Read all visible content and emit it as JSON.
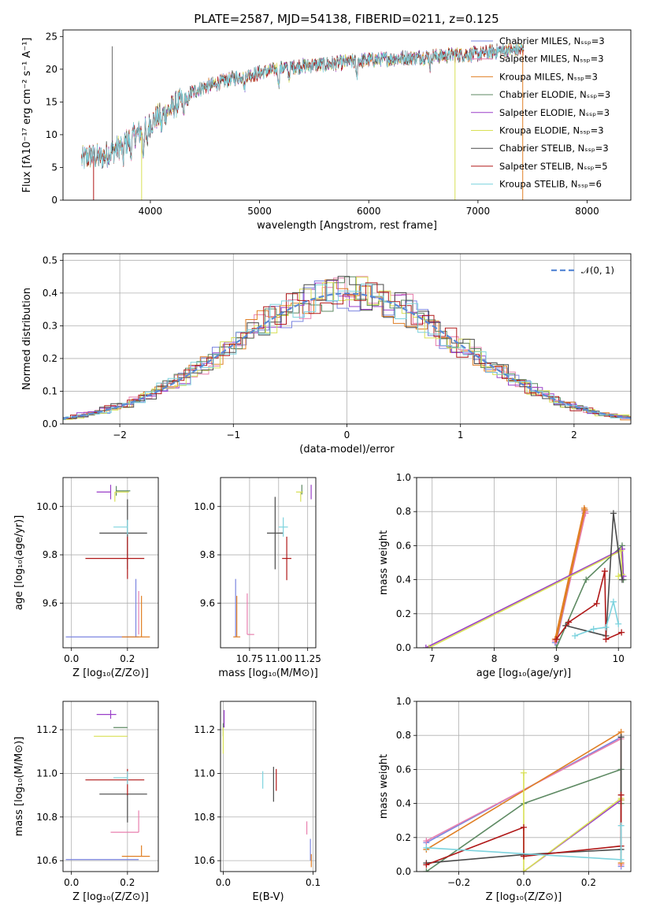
{
  "title": "PLATE=2587, MJD=54138, FIBERID=0211, z=0.125",
  "colors": {
    "Chabrier MILES": "#7b85e0",
    "Salpeter MILES": "#e87fae",
    "Kroupa MILES": "#e07f24",
    "Chabrier ELODIE": "#5e8a63",
    "Salpeter ELODIE": "#9a3fc8",
    "Kroupa ELODIE": "#d8e055",
    "Chabrier STELIB": "#4a4a4a",
    "Salpeter STELIB": "#b01818",
    "Kroupa STELIB": "#7dd3de",
    "gaussian": "#5a8ad6"
  },
  "chart_data": [
    {
      "id": "spectrum",
      "type": "line",
      "xlabel": "wavelength [Angstrom, rest frame]",
      "ylabel": "Flux [fλ10⁻¹⁷ erg cm⁻² s⁻¹ A⁻¹]",
      "xlim": [
        3200,
        8400
      ],
      "ylim": [
        0,
        26
      ],
      "xticks": [
        4000,
        5000,
        6000,
        7000,
        8000
      ],
      "yticks": [
        0,
        5,
        10,
        15,
        20,
        25
      ],
      "legend_position": "top-right",
      "legend": [
        "Chabrier MILES, Nₛₛₚ=3",
        "Salpeter MILES, Nₛₛₚ=3",
        "Kroupa MILES, Nₛₛₚ=3",
        "Chabrier ELODIE, Nₛₛₚ=3",
        "Salpeter ELODIE, Nₛₛₚ=3",
        "Kroupa ELODIE, Nₛₛₚ=3",
        "Chabrier STELIB, Nₛₛₚ=3",
        "Salpeter STELIB, Nₛₛₚ=5",
        "Kroupa STELIB, Nₛₛₚ=6"
      ],
      "continuum": {
        "x": [
          3370,
          3450,
          3550,
          3650,
          3750,
          3850,
          3950,
          4050,
          4150,
          4250,
          4350,
          4450,
          4550,
          4700,
          4850,
          5000,
          5200,
          5400,
          5600,
          5800,
          6000,
          6200,
          6400,
          6600,
          6800,
          7000,
          7200,
          7400
        ],
        "y": [
          6.2,
          6.8,
          6.5,
          7.5,
          8.5,
          9.8,
          10.8,
          12.5,
          13.5,
          14.8,
          16.2,
          17.0,
          17.5,
          18.3,
          19.0,
          19.4,
          20.2,
          20.5,
          20.7,
          21.1,
          21.4,
          21.6,
          21.8,
          22.0,
          22.2,
          22.3,
          22.8,
          23.0
        ]
      },
      "deep_drops": [
        {
          "series": "Salpeter STELIB",
          "x": 3480
        },
        {
          "series": "Kroupa ELODIE",
          "x": 3920
        },
        {
          "series": "Kroupa ELODIE",
          "x": 6790
        },
        {
          "series": "Kroupa MILES",
          "x": 7410
        }
      ]
    },
    {
      "id": "residuals",
      "type": "line",
      "xlabel": "(data-model)/error",
      "ylabel": "Normed distribution",
      "xlim": [
        -2.5,
        2.5
      ],
      "ylim": [
        0,
        0.52
      ],
      "xticks": [
        -2,
        -1,
        0,
        1,
        2
      ],
      "yticks": [
        0.0,
        0.1,
        0.2,
        0.3,
        0.4,
        0.5
      ],
      "grid": true,
      "legend_position": "top-right",
      "gaussian_label": "𝒩(0, 1)",
      "bin_width": 0.1
    },
    {
      "id": "age-vs-Z",
      "type": "scatter",
      "xlabel": "Z [log₁₀(Z/Z⊙)]",
      "ylabel": "age  [log₁₀(age/yr)]",
      "xlim": [
        -0.03,
        0.31
      ],
      "ylim": [
        9.415,
        10.12
      ],
      "xticks": [
        0.0,
        0.2
      ],
      "yticks": [
        9.6,
        9.8,
        10.0
      ],
      "grid": true,
      "points": [
        {
          "series": "Chabrier MILES",
          "x": 0.23,
          "y": 9.46,
          "xerr": [
            0.25,
            0.01
          ],
          "yerr": [
            0.0,
            0.24
          ]
        },
        {
          "series": "Salpeter MILES",
          "x": 0.24,
          "y": 9.47,
          "xerr": [
            0.0,
            0.0
          ],
          "yerr": [
            0.0,
            0.18
          ]
        },
        {
          "series": "Kroupa MILES",
          "x": 0.25,
          "y": 9.46,
          "xerr": [
            0.07,
            0.03
          ],
          "yerr": [
            0.0,
            0.17
          ]
        },
        {
          "series": "Chabrier ELODIE",
          "x": 0.16,
          "y": 10.065,
          "xerr": [
            0.0,
            0.05
          ],
          "yerr": [
            0.02,
            0.02
          ]
        },
        {
          "series": "Salpeter ELODIE",
          "x": 0.14,
          "y": 10.06,
          "xerr": [
            0.05,
            0.0
          ],
          "yerr": [
            0.03,
            0.03
          ]
        },
        {
          "series": "Kroupa ELODIE",
          "x": 0.155,
          "y": 10.06,
          "xerr": [
            0.0,
            0.05
          ],
          "yerr": [
            0.04,
            0.0
          ]
        },
        {
          "series": "Chabrier STELIB",
          "x": 0.2,
          "y": 9.89,
          "xerr": [
            0.1,
            0.07
          ],
          "yerr": [
            0.15,
            0.14
          ]
        },
        {
          "series": "Salpeter STELIB",
          "x": 0.2,
          "y": 9.785,
          "xerr": [
            0.15,
            0.06
          ],
          "yerr": [
            0.085,
            0.09
          ]
        },
        {
          "series": "Kroupa STELIB",
          "x": 0.2,
          "y": 9.915,
          "xerr": [
            0.05,
            0.0
          ],
          "yerr": [
            0.03,
            0.03
          ]
        }
      ]
    },
    {
      "id": "age-vs-mass",
      "type": "scatter",
      "xlabel": "mass [log₁₀(M/M⊙)]",
      "ylabel": "",
      "xlim": [
        10.5,
        11.32
      ],
      "ylim": [
        9.415,
        10.12
      ],
      "xticks": [
        10.75,
        11.0,
        11.25
      ],
      "xtick_labels": [
        "10.75",
        "11.00",
        "11.25"
      ],
      "yticks": [
        9.6,
        9.8,
        10.0
      ],
      "grid": true,
      "points": [
        {
          "series": "Chabrier MILES",
          "x": 10.63,
          "y": 9.46,
          "xerr": [
            0.0,
            0.0
          ],
          "yerr": [
            0.0,
            0.24
          ]
        },
        {
          "series": "Salpeter MILES",
          "x": 10.73,
          "y": 9.47,
          "xerr": [
            0.0,
            0.06
          ],
          "yerr": [
            0.0,
            0.17
          ]
        },
        {
          "series": "Kroupa MILES",
          "x": 10.64,
          "y": 9.46,
          "xerr": [
            0.03,
            0.03
          ],
          "yerr": [
            0.0,
            0.17
          ]
        },
        {
          "series": "Chabrier ELODIE",
          "x": 11.2,
          "y": 10.07,
          "xerr": [
            0.0,
            0.0
          ],
          "yerr": [
            0.02,
            0.02
          ]
        },
        {
          "series": "Salpeter ELODIE",
          "x": 11.28,
          "y": 10.06,
          "xerr": [
            0.0,
            0.0
          ],
          "yerr": [
            0.03,
            0.03
          ]
        },
        {
          "series": "Kroupa ELODIE",
          "x": 11.19,
          "y": 10.06,
          "xerr": [
            0.04,
            0.02
          ],
          "yerr": [
            0.04,
            0.0
          ]
        },
        {
          "series": "Chabrier STELIB",
          "x": 10.97,
          "y": 9.89,
          "xerr": [
            0.07,
            0.07
          ],
          "yerr": [
            0.15,
            0.15
          ]
        },
        {
          "series": "Salpeter STELIB",
          "x": 11.07,
          "y": 9.785,
          "xerr": [
            0.04,
            0.04
          ],
          "yerr": [
            0.09,
            0.09
          ]
        },
        {
          "series": "Kroupa STELIB",
          "x": 11.04,
          "y": 9.915,
          "xerr": [
            0.04,
            0.04
          ],
          "yerr": [
            0.04,
            0.04
          ]
        }
      ]
    },
    {
      "id": "mass-weight-vs-age",
      "type": "line",
      "xlabel": "age  [log₁₀(age/yr)]",
      "ylabel": "mass weight",
      "xlim": [
        6.75,
        10.2
      ],
      "ylim": [
        0,
        1.0
      ],
      "xticks": [
        7,
        8,
        9,
        10
      ],
      "yticks": [
        0.0,
        0.2,
        0.4,
        0.6,
        0.8,
        1.0
      ],
      "grid": true,
      "series": [
        {
          "name": "Chabrier MILES",
          "x": [
            9.0,
            9.46,
            9.45,
            8.98
          ],
          "y": [
            0.03,
            0.79,
            0.81,
            0.03
          ]
        },
        {
          "name": "Salpeter MILES",
          "x": [
            9.0,
            9.47,
            9.46,
            8.98
          ],
          "y": [
            0.04,
            0.79,
            0.8,
            0.04
          ]
        },
        {
          "name": "Kroupa MILES",
          "x": [
            9.0,
            9.46,
            9.45,
            8.98
          ],
          "y": [
            0.05,
            0.81,
            0.82,
            0.05
          ]
        },
        {
          "name": "Chabrier ELODIE",
          "x": [
            9.0,
            9.48,
            10.06,
            10.08
          ],
          "y": [
            0.0,
            0.4,
            0.6,
            0.4
          ]
        },
        {
          "name": "Salpeter ELODIE",
          "x": [
            6.9,
            10.06,
            10.08
          ],
          "y": [
            0.0,
            0.58,
            0.42
          ]
        },
        {
          "name": "Kroupa ELODIE",
          "x": [
            6.95,
            10.04,
            10.06,
            10.0
          ],
          "y": [
            0.0,
            0.57,
            0.43,
            0.42
          ]
        },
        {
          "name": "Chabrier STELIB",
          "x": [
            9.15,
            9.8,
            9.92,
            10.06
          ],
          "y": [
            0.13,
            0.07,
            0.79,
            0.4
          ]
        },
        {
          "name": "Salpeter STELIB",
          "x": [
            9.0,
            9.2,
            9.65,
            9.78,
            9.8,
            10.05
          ],
          "y": [
            0.05,
            0.15,
            0.26,
            0.45,
            0.05,
            0.09
          ]
        },
        {
          "name": "Kroupa STELIB",
          "x": [
            9.3,
            9.6,
            9.8,
            9.92,
            10.0
          ],
          "y": [
            0.07,
            0.11,
            0.12,
            0.27,
            0.14
          ]
        }
      ]
    },
    {
      "id": "mass-vs-Z",
      "type": "scatter",
      "xlabel": "Z [log₁₀(Z/Z⊙)]",
      "ylabel": "mass [log₁₀(M/M⊙)]",
      "xlim": [
        -0.03,
        0.31
      ],
      "ylim": [
        10.55,
        11.33
      ],
      "xticks": [
        0.0,
        0.2
      ],
      "yticks": [
        10.6,
        10.8,
        11.0,
        11.2
      ],
      "grid": true,
      "points": [
        {
          "series": "Chabrier MILES",
          "x": 0.23,
          "y": 10.605,
          "xerr": [
            0.25,
            0.01
          ],
          "yerr": [
            0.0,
            0.0
          ]
        },
        {
          "series": "Salpeter MILES",
          "x": 0.24,
          "y": 10.73,
          "xerr": [
            0.1,
            0.0
          ],
          "yerr": [
            0.0,
            0.1
          ]
        },
        {
          "series": "Kroupa MILES",
          "x": 0.25,
          "y": 10.62,
          "xerr": [
            0.07,
            0.03
          ],
          "yerr": [
            0.0,
            0.05
          ]
        },
        {
          "series": "Chabrier ELODIE",
          "x": 0.2,
          "y": 11.21,
          "xerr": [
            0.05,
            0.0
          ],
          "yerr": [
            0.0,
            0.0
          ]
        },
        {
          "series": "Salpeter ELODIE",
          "x": 0.14,
          "y": 11.27,
          "xerr": [
            0.05,
            0.02
          ],
          "yerr": [
            0.02,
            0.02
          ]
        },
        {
          "series": "Kroupa ELODIE",
          "x": 0.16,
          "y": 11.17,
          "xerr": [
            0.08,
            0.04
          ],
          "yerr": [
            0.0,
            0.0
          ]
        },
        {
          "series": "Chabrier STELIB",
          "x": 0.2,
          "y": 10.905,
          "xerr": [
            0.1,
            0.07
          ],
          "yerr": [
            0.13,
            0.0
          ]
        },
        {
          "series": "Salpeter STELIB",
          "x": 0.2,
          "y": 10.97,
          "xerr": [
            0.15,
            0.06
          ],
          "yerr": [
            0.07,
            0.05
          ]
        },
        {
          "series": "Kroupa STELIB",
          "x": 0.2,
          "y": 10.98,
          "xerr": [
            0.05,
            0.0
          ],
          "yerr": [
            0.03,
            0.03
          ]
        }
      ]
    },
    {
      "id": "mass-vs-EBV",
      "type": "scatter",
      "xlabel": "E(B-V)",
      "ylabel": "",
      "xlim": [
        -0.003,
        0.103
      ],
      "ylim": [
        10.55,
        11.33
      ],
      "xticks": [
        0.0,
        0.1
      ],
      "yticks": [
        10.6,
        10.8,
        11.0,
        11.2
      ],
      "grid": true,
      "points": [
        {
          "series": "Chabrier MILES",
          "x": 0.097,
          "y": 10.65,
          "xerr": [
            0.0,
            0.0
          ],
          "yerr": [
            0.05,
            0.05
          ]
        },
        {
          "series": "Salpeter MILES",
          "x": 0.093,
          "y": 10.78,
          "xerr": [
            0.0,
            0.0
          ],
          "yerr": [
            0.06,
            0.0
          ]
        },
        {
          "series": "Kroupa MILES",
          "x": 0.098,
          "y": 10.6,
          "xerr": [
            0.0,
            0.0
          ],
          "yerr": [
            0.03,
            0.03
          ]
        },
        {
          "series": "Chabrier ELODIE",
          "x": 0.0,
          "y": 11.2,
          "xerr": [
            0.0,
            0.0
          ],
          "yerr": [
            0.03,
            0.03
          ]
        },
        {
          "series": "Salpeter ELODIE",
          "x": 0.001,
          "y": 11.25,
          "xerr": [
            0.0,
            0.0
          ],
          "yerr": [
            0.04,
            0.04
          ]
        },
        {
          "series": "Kroupa ELODIE",
          "x": 0.0,
          "y": 11.15,
          "xerr": [
            0.0,
            0.0
          ],
          "yerr": [
            0.06,
            0.06
          ]
        },
        {
          "series": "Chabrier STELIB",
          "x": 0.056,
          "y": 10.95,
          "xerr": [
            0.0,
            0.0
          ],
          "yerr": [
            0.08,
            0.08
          ]
        },
        {
          "series": "Salpeter STELIB",
          "x": 0.059,
          "y": 10.97,
          "xerr": [
            0.0,
            0.0
          ],
          "yerr": [
            0.05,
            0.05
          ]
        },
        {
          "series": "Kroupa STELIB",
          "x": 0.044,
          "y": 10.97,
          "xerr": [
            0.0,
            0.0
          ],
          "yerr": [
            0.04,
            0.04
          ]
        }
      ]
    },
    {
      "id": "mass-weight-vs-Z",
      "type": "line",
      "xlabel": "Z [log₁₀(Z/Z⊙)]",
      "ylabel": "mass weight",
      "xlim": [
        -0.33,
        0.33
      ],
      "ylim": [
        0,
        1.0
      ],
      "xticks": [
        -0.2,
        0.0,
        0.2
      ],
      "yticks": [
        0.0,
        0.2,
        0.4,
        0.6,
        0.8,
        1.0
      ],
      "grid": true,
      "series": [
        {
          "name": "Chabrier MILES",
          "x": [
            -0.3,
            0.3,
            0.3
          ],
          "y": [
            0.17,
            0.79,
            0.03
          ]
        },
        {
          "name": "Salpeter MILES",
          "x": [
            -0.3,
            0.3,
            0.3
          ],
          "y": [
            0.18,
            0.78,
            0.04
          ]
        },
        {
          "name": "Kroupa MILES",
          "x": [
            -0.3,
            0.3,
            0.3
          ],
          "y": [
            0.13,
            0.82,
            0.05
          ]
        },
        {
          "name": "Chabrier ELODIE",
          "x": [
            -0.3,
            0.0,
            0.3,
            0.3
          ],
          "y": [
            0.0,
            0.4,
            0.6,
            0.4
          ]
        },
        {
          "name": "Salpeter ELODIE",
          "x": [
            0.0,
            0.3,
            0.3
          ],
          "y": [
            0.0,
            0.42,
            0.42
          ]
        },
        {
          "name": "Kroupa ELODIE",
          "x": [
            0.0,
            0.0,
            0.3,
            0.3
          ],
          "y": [
            0.58,
            0.0,
            0.43,
            0.42
          ]
        },
        {
          "name": "Chabrier STELIB",
          "x": [
            -0.3,
            0.0,
            0.3,
            0.3
          ],
          "y": [
            0.05,
            0.1,
            0.13,
            0.79
          ]
        },
        {
          "name": "Salpeter STELIB",
          "x": [
            -0.3,
            0.0,
            0.0,
            0.3,
            0.3
          ],
          "y": [
            0.04,
            0.26,
            0.09,
            0.15,
            0.45
          ]
        },
        {
          "name": "Kroupa STELIB",
          "x": [
            -0.3,
            0.3,
            0.3
          ],
          "y": [
            0.14,
            0.07,
            0.27
          ]
        }
      ]
    }
  ]
}
